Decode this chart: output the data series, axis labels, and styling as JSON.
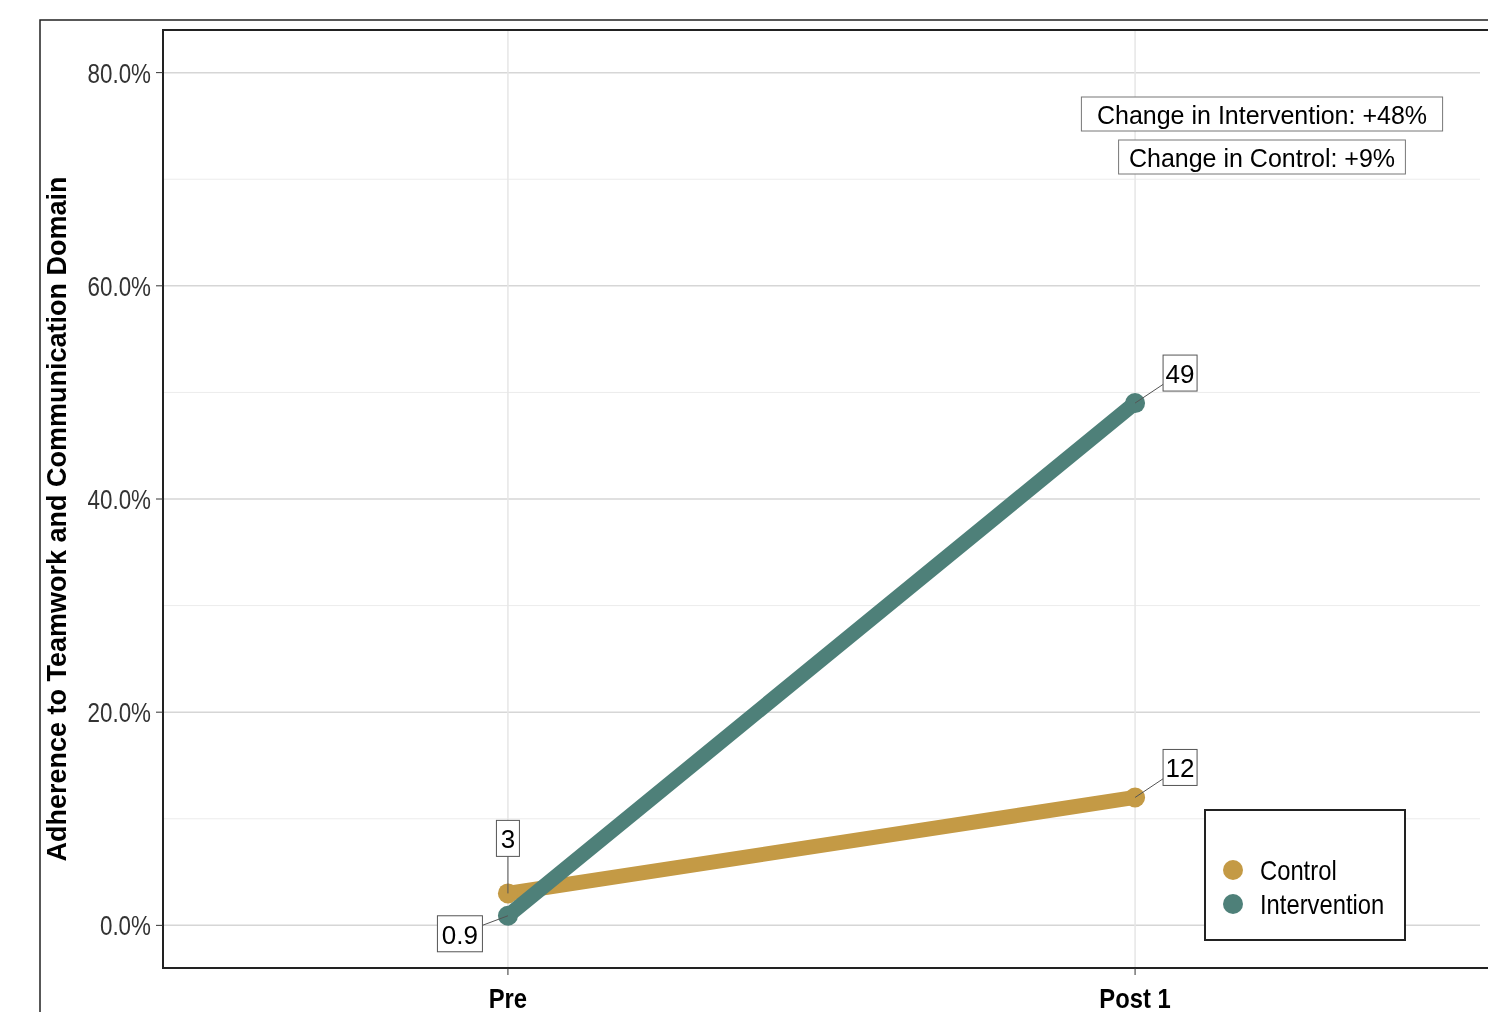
{
  "chart_data": {
    "type": "line",
    "ylabel": "Adherence to Teamwork and Communication Domain",
    "categories": [
      "Pre",
      "Post 1"
    ],
    "series": [
      {
        "name": "Control",
        "color": "#c49a45",
        "values": [
          3,
          12
        ]
      },
      {
        "name": "Intervention",
        "color": "#4e8079",
        "values": [
          0.9,
          49
        ]
      }
    ],
    "ylim": [
      -4,
      84
    ],
    "yticks": [
      {
        "value": 0,
        "label": "0.0%"
      },
      {
        "value": 10,
        "label": null
      },
      {
        "value": 20,
        "label": "20.0%"
      },
      {
        "value": 30,
        "label": null
      },
      {
        "value": 40,
        "label": "40.0%"
      },
      {
        "value": 50,
        "label": null
      },
      {
        "value": 60,
        "label": "60.0%"
      },
      {
        "value": 70,
        "label": null
      },
      {
        "value": 80,
        "label": "80.0%"
      }
    ],
    "grid": true,
    "legend": "bottom right",
    "marker": "circle",
    "line_style": "solid",
    "data_labels": true,
    "annotations": [
      "Change in Intervention: +48%",
      "Change in Control: +9%"
    ]
  }
}
